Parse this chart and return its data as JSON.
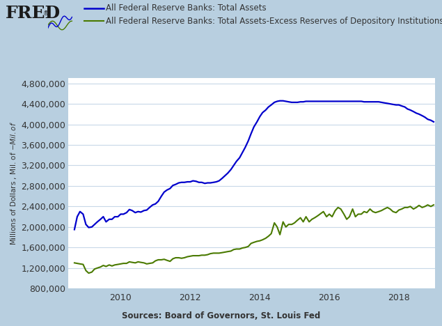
{
  "background_outer": "#b8cfe0",
  "background_plot": "#ffffff",
  "ylabel": "Millions of Dollars , Mil. of $-Mil. of $",
  "source_text": "Sources: Board of Governors, St. Louis Fed",
  "ylim": [
    800000,
    4900000
  ],
  "yticks": [
    800000,
    1200000,
    1600000,
    2000000,
    2400000,
    2800000,
    3200000,
    3600000,
    4000000,
    4400000,
    4800000
  ],
  "xlim_start": 2008.5,
  "xlim_end": 2019.05,
  "xticks": [
    2010,
    2012,
    2014,
    2016,
    2018
  ],
  "line1_color": "#0000cc",
  "line2_color": "#4a7a00",
  "line1_label": "All Federal Reserve Banks: Total Assets",
  "line2_label": "All Federal Reserve Banks: Total Assets-Excess Reserves of Depository Institutions",
  "fred_text_color": "#1a1a1a",
  "grid_color": "#c8d8e8",
  "tick_label_color": "#333333",
  "source_color": "#333333",
  "total_assets": [
    [
      2008.67,
      1950000
    ],
    [
      2008.75,
      2200000
    ],
    [
      2008.83,
      2300000
    ],
    [
      2008.92,
      2250000
    ],
    [
      2009.0,
      2050000
    ],
    [
      2009.08,
      1990000
    ],
    [
      2009.17,
      2000000
    ],
    [
      2009.25,
      2050000
    ],
    [
      2009.33,
      2100000
    ],
    [
      2009.42,
      2150000
    ],
    [
      2009.5,
      2200000
    ],
    [
      2009.58,
      2100000
    ],
    [
      2009.67,
      2150000
    ],
    [
      2009.75,
      2150000
    ],
    [
      2009.83,
      2200000
    ],
    [
      2009.92,
      2200000
    ],
    [
      2010.0,
      2250000
    ],
    [
      2010.08,
      2250000
    ],
    [
      2010.17,
      2280000
    ],
    [
      2010.25,
      2340000
    ],
    [
      2010.33,
      2320000
    ],
    [
      2010.42,
      2280000
    ],
    [
      2010.5,
      2300000
    ],
    [
      2010.58,
      2290000
    ],
    [
      2010.67,
      2320000
    ],
    [
      2010.75,
      2330000
    ],
    [
      2010.83,
      2380000
    ],
    [
      2010.92,
      2430000
    ],
    [
      2011.0,
      2450000
    ],
    [
      2011.08,
      2500000
    ],
    [
      2011.17,
      2600000
    ],
    [
      2011.25,
      2680000
    ],
    [
      2011.33,
      2720000
    ],
    [
      2011.42,
      2750000
    ],
    [
      2011.5,
      2810000
    ],
    [
      2011.58,
      2830000
    ],
    [
      2011.67,
      2860000
    ],
    [
      2011.75,
      2870000
    ],
    [
      2011.83,
      2870000
    ],
    [
      2011.92,
      2880000
    ],
    [
      2012.0,
      2880000
    ],
    [
      2012.08,
      2900000
    ],
    [
      2012.17,
      2890000
    ],
    [
      2012.25,
      2870000
    ],
    [
      2012.33,
      2870000
    ],
    [
      2012.42,
      2850000
    ],
    [
      2012.5,
      2860000
    ],
    [
      2012.58,
      2860000
    ],
    [
      2012.67,
      2870000
    ],
    [
      2012.75,
      2880000
    ],
    [
      2012.83,
      2900000
    ],
    [
      2012.92,
      2950000
    ],
    [
      2013.0,
      3000000
    ],
    [
      2013.08,
      3050000
    ],
    [
      2013.17,
      3120000
    ],
    [
      2013.25,
      3200000
    ],
    [
      2013.33,
      3280000
    ],
    [
      2013.42,
      3350000
    ],
    [
      2013.5,
      3450000
    ],
    [
      2013.58,
      3550000
    ],
    [
      2013.67,
      3680000
    ],
    [
      2013.75,
      3820000
    ],
    [
      2013.83,
      3950000
    ],
    [
      2013.92,
      4050000
    ],
    [
      2014.0,
      4150000
    ],
    [
      2014.08,
      4230000
    ],
    [
      2014.17,
      4280000
    ],
    [
      2014.25,
      4340000
    ],
    [
      2014.33,
      4380000
    ],
    [
      2014.42,
      4430000
    ],
    [
      2014.5,
      4450000
    ],
    [
      2014.58,
      4460000
    ],
    [
      2014.67,
      4460000
    ],
    [
      2014.75,
      4450000
    ],
    [
      2014.83,
      4440000
    ],
    [
      2014.92,
      4430000
    ],
    [
      2015.0,
      4430000
    ],
    [
      2015.08,
      4430000
    ],
    [
      2015.17,
      4440000
    ],
    [
      2015.25,
      4440000
    ],
    [
      2015.33,
      4450000
    ],
    [
      2015.42,
      4450000
    ],
    [
      2015.5,
      4450000
    ],
    [
      2015.58,
      4450000
    ],
    [
      2015.67,
      4450000
    ],
    [
      2015.75,
      4450000
    ],
    [
      2015.83,
      4450000
    ],
    [
      2015.92,
      4450000
    ],
    [
      2016.0,
      4450000
    ],
    [
      2016.08,
      4450000
    ],
    [
      2016.17,
      4450000
    ],
    [
      2016.25,
      4450000
    ],
    [
      2016.33,
      4450000
    ],
    [
      2016.42,
      4450000
    ],
    [
      2016.5,
      4450000
    ],
    [
      2016.58,
      4450000
    ],
    [
      2016.67,
      4450000
    ],
    [
      2016.75,
      4450000
    ],
    [
      2016.83,
      4450000
    ],
    [
      2016.92,
      4450000
    ],
    [
      2017.0,
      4440000
    ],
    [
      2017.08,
      4440000
    ],
    [
      2017.17,
      4440000
    ],
    [
      2017.25,
      4440000
    ],
    [
      2017.33,
      4440000
    ],
    [
      2017.42,
      4440000
    ],
    [
      2017.5,
      4430000
    ],
    [
      2017.58,
      4420000
    ],
    [
      2017.67,
      4410000
    ],
    [
      2017.75,
      4400000
    ],
    [
      2017.83,
      4390000
    ],
    [
      2017.92,
      4380000
    ],
    [
      2018.0,
      4380000
    ],
    [
      2018.08,
      4360000
    ],
    [
      2018.17,
      4340000
    ],
    [
      2018.25,
      4300000
    ],
    [
      2018.33,
      4280000
    ],
    [
      2018.42,
      4250000
    ],
    [
      2018.5,
      4220000
    ],
    [
      2018.58,
      4200000
    ],
    [
      2018.67,
      4170000
    ],
    [
      2018.75,
      4140000
    ],
    [
      2018.83,
      4100000
    ],
    [
      2018.92,
      4080000
    ],
    [
      2019.0,
      4050000
    ]
  ],
  "net_assets": [
    [
      2008.67,
      1300000
    ],
    [
      2008.75,
      1290000
    ],
    [
      2008.83,
      1280000
    ],
    [
      2008.92,
      1270000
    ],
    [
      2009.0,
      1150000
    ],
    [
      2009.08,
      1100000
    ],
    [
      2009.17,
      1120000
    ],
    [
      2009.25,
      1180000
    ],
    [
      2009.33,
      1200000
    ],
    [
      2009.42,
      1220000
    ],
    [
      2009.5,
      1250000
    ],
    [
      2009.58,
      1230000
    ],
    [
      2009.67,
      1260000
    ],
    [
      2009.75,
      1240000
    ],
    [
      2009.83,
      1260000
    ],
    [
      2009.92,
      1270000
    ],
    [
      2010.0,
      1280000
    ],
    [
      2010.08,
      1290000
    ],
    [
      2010.17,
      1290000
    ],
    [
      2010.25,
      1320000
    ],
    [
      2010.33,
      1310000
    ],
    [
      2010.42,
      1300000
    ],
    [
      2010.5,
      1320000
    ],
    [
      2010.58,
      1310000
    ],
    [
      2010.67,
      1300000
    ],
    [
      2010.75,
      1280000
    ],
    [
      2010.83,
      1290000
    ],
    [
      2010.92,
      1300000
    ],
    [
      2011.0,
      1340000
    ],
    [
      2011.08,
      1360000
    ],
    [
      2011.17,
      1360000
    ],
    [
      2011.25,
      1370000
    ],
    [
      2011.33,
      1350000
    ],
    [
      2011.42,
      1330000
    ],
    [
      2011.5,
      1380000
    ],
    [
      2011.58,
      1400000
    ],
    [
      2011.67,
      1400000
    ],
    [
      2011.75,
      1390000
    ],
    [
      2011.83,
      1400000
    ],
    [
      2011.92,
      1420000
    ],
    [
      2012.0,
      1430000
    ],
    [
      2012.08,
      1440000
    ],
    [
      2012.17,
      1440000
    ],
    [
      2012.25,
      1440000
    ],
    [
      2012.33,
      1450000
    ],
    [
      2012.42,
      1450000
    ],
    [
      2012.5,
      1460000
    ],
    [
      2012.58,
      1480000
    ],
    [
      2012.67,
      1490000
    ],
    [
      2012.75,
      1490000
    ],
    [
      2012.83,
      1490000
    ],
    [
      2012.92,
      1500000
    ],
    [
      2013.0,
      1510000
    ],
    [
      2013.08,
      1520000
    ],
    [
      2013.17,
      1530000
    ],
    [
      2013.25,
      1560000
    ],
    [
      2013.33,
      1570000
    ],
    [
      2013.42,
      1570000
    ],
    [
      2013.5,
      1590000
    ],
    [
      2013.58,
      1600000
    ],
    [
      2013.67,
      1620000
    ],
    [
      2013.75,
      1680000
    ],
    [
      2013.83,
      1700000
    ],
    [
      2013.92,
      1720000
    ],
    [
      2014.0,
      1730000
    ],
    [
      2014.08,
      1750000
    ],
    [
      2014.17,
      1780000
    ],
    [
      2014.25,
      1820000
    ],
    [
      2014.33,
      1870000
    ],
    [
      2014.42,
      2080000
    ],
    [
      2014.5,
      2000000
    ],
    [
      2014.58,
      1850000
    ],
    [
      2014.67,
      2100000
    ],
    [
      2014.75,
      2000000
    ],
    [
      2014.83,
      2050000
    ],
    [
      2014.92,
      2050000
    ],
    [
      2015.0,
      2080000
    ],
    [
      2015.08,
      2130000
    ],
    [
      2015.17,
      2180000
    ],
    [
      2015.25,
      2100000
    ],
    [
      2015.33,
      2200000
    ],
    [
      2015.42,
      2100000
    ],
    [
      2015.5,
      2150000
    ],
    [
      2015.58,
      2180000
    ],
    [
      2015.67,
      2220000
    ],
    [
      2015.75,
      2260000
    ],
    [
      2015.83,
      2300000
    ],
    [
      2015.92,
      2200000
    ],
    [
      2016.0,
      2250000
    ],
    [
      2016.08,
      2200000
    ],
    [
      2016.17,
      2320000
    ],
    [
      2016.25,
      2380000
    ],
    [
      2016.33,
      2350000
    ],
    [
      2016.42,
      2250000
    ],
    [
      2016.5,
      2150000
    ],
    [
      2016.58,
      2200000
    ],
    [
      2016.67,
      2350000
    ],
    [
      2016.75,
      2200000
    ],
    [
      2016.83,
      2250000
    ],
    [
      2016.92,
      2250000
    ],
    [
      2017.0,
      2300000
    ],
    [
      2017.08,
      2280000
    ],
    [
      2017.17,
      2350000
    ],
    [
      2017.25,
      2300000
    ],
    [
      2017.33,
      2280000
    ],
    [
      2017.42,
      2300000
    ],
    [
      2017.5,
      2320000
    ],
    [
      2017.58,
      2350000
    ],
    [
      2017.67,
      2380000
    ],
    [
      2017.75,
      2350000
    ],
    [
      2017.83,
      2300000
    ],
    [
      2017.92,
      2280000
    ],
    [
      2018.0,
      2330000
    ],
    [
      2018.08,
      2350000
    ],
    [
      2018.17,
      2380000
    ],
    [
      2018.25,
      2380000
    ],
    [
      2018.33,
      2400000
    ],
    [
      2018.42,
      2350000
    ],
    [
      2018.5,
      2380000
    ],
    [
      2018.58,
      2420000
    ],
    [
      2018.67,
      2380000
    ],
    [
      2018.75,
      2400000
    ],
    [
      2018.83,
      2430000
    ],
    [
      2018.92,
      2400000
    ],
    [
      2019.0,
      2430000
    ]
  ]
}
